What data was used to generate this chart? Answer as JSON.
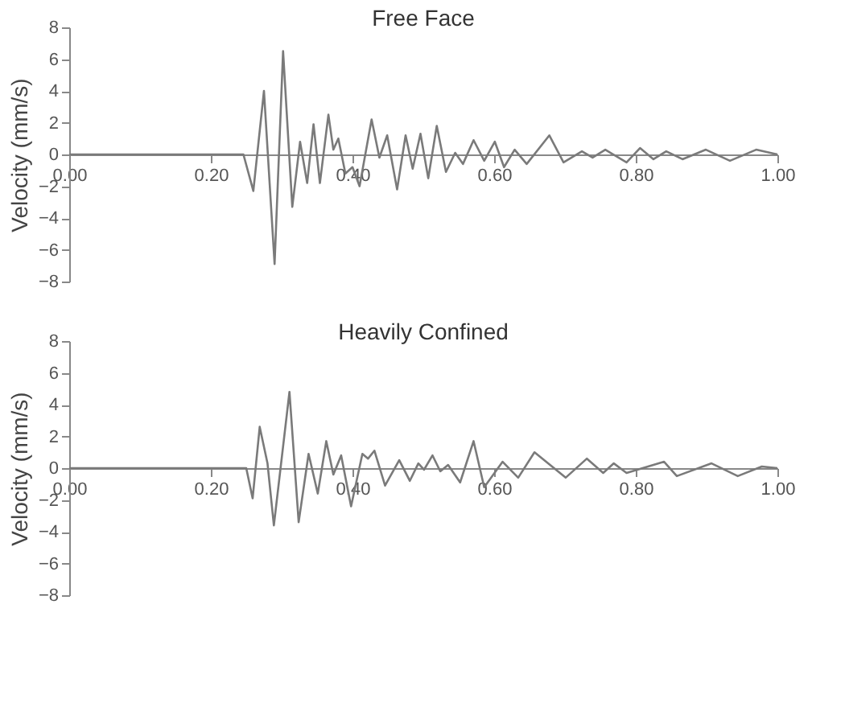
{
  "chart_data": [
    {
      "type": "line",
      "title": "Free Face",
      "ylabel": "Velocity (mm/s)",
      "color": "#7a7a7a",
      "xlim": [
        0,
        1
      ],
      "ylim": [
        -8,
        8
      ],
      "yticks": [
        -8,
        -6,
        -4,
        -2,
        0,
        2,
        4,
        6,
        8
      ],
      "xticks": [
        {
          "value": 0,
          "label": "0.00"
        },
        {
          "value": 0.2,
          "label": "0.20"
        },
        {
          "value": 0.4,
          "label": "0.40"
        },
        {
          "value": 0.6,
          "label": "0.60"
        },
        {
          "value": 0.8,
          "label": "0.80"
        },
        {
          "value": 1,
          "label": "1.00"
        }
      ],
      "grid": false,
      "x": [
        0,
        0.1,
        0.2,
        0.246,
        0.26,
        0.275,
        0.29,
        0.302,
        0.315,
        0.326,
        0.336,
        0.345,
        0.354,
        0.366,
        0.373,
        0.38,
        0.39,
        0.4,
        0.41,
        0.427,
        0.438,
        0.449,
        0.463,
        0.475,
        0.485,
        0.496,
        0.507,
        0.519,
        0.532,
        0.545,
        0.556,
        0.571,
        0.586,
        0.601,
        0.614,
        0.629,
        0.646,
        0.678,
        0.698,
        0.724,
        0.739,
        0.757,
        0.787,
        0.806,
        0.825,
        0.843,
        0.866,
        0.899,
        0.933,
        0.97,
        1.0
      ],
      "values": [
        0,
        0,
        0,
        0,
        -2.3,
        4.0,
        -6.9,
        6.5,
        -3.3,
        0.8,
        -1.8,
        1.9,
        -1.8,
        2.5,
        0.3,
        1.0,
        -1.2,
        -0.8,
        -2.0,
        2.2,
        -0.2,
        1.2,
        -2.2,
        1.2,
        -0.9,
        1.3,
        -1.5,
        1.8,
        -1.1,
        0.1,
        -0.6,
        0.9,
        -0.4,
        0.8,
        -0.8,
        0.3,
        -0.6,
        1.2,
        -0.5,
        0.2,
        -0.2,
        0.3,
        -0.5,
        0.4,
        -0.3,
        0.2,
        -0.3,
        0.3,
        -0.4,
        0.3,
        0
      ]
    },
    {
      "type": "line",
      "title": "Heavily Confined",
      "ylabel": "Velocity (mm/s)",
      "color": "#7a7a7a",
      "xlim": [
        0,
        1
      ],
      "ylim": [
        -8,
        8
      ],
      "yticks": [
        -8,
        -6,
        -4,
        -2,
        0,
        2,
        4,
        6,
        8
      ],
      "xticks": [
        {
          "value": 0,
          "label": "0.00"
        },
        {
          "value": 0.2,
          "label": "0.20"
        },
        {
          "value": 0.4,
          "label": "0.40"
        },
        {
          "value": 0.6,
          "label": "0.60"
        },
        {
          "value": 0.8,
          "label": "0.80"
        },
        {
          "value": 1,
          "label": "1.00"
        }
      ],
      "grid": false,
      "x": [
        0,
        0.1,
        0.2,
        0.25,
        0.259,
        0.269,
        0.28,
        0.289,
        0.311,
        0.324,
        0.338,
        0.351,
        0.363,
        0.373,
        0.384,
        0.398,
        0.414,
        0.422,
        0.431,
        0.446,
        0.466,
        0.481,
        0.493,
        0.501,
        0.513,
        0.524,
        0.535,
        0.552,
        0.571,
        0.586,
        0.612,
        0.634,
        0.657,
        0.701,
        0.731,
        0.754,
        0.769,
        0.787,
        0.84,
        0.858,
        0.907,
        0.944,
        0.978,
        1.0
      ],
      "values": [
        0,
        0,
        0,
        0,
        -1.9,
        2.6,
        0.3,
        -3.6,
        4.8,
        -3.4,
        0.9,
        -1.6,
        1.7,
        -0.4,
        0.8,
        -2.4,
        0.9,
        0.6,
        1.1,
        -1.1,
        0.5,
        -0.8,
        0.3,
        -0.1,
        0.8,
        -0.2,
        0.2,
        -0.9,
        1.7,
        -1.2,
        0.4,
        -0.6,
        1.0,
        -0.6,
        0.6,
        -0.3,
        0.3,
        -0.3,
        0.4,
        -0.5,
        0.3,
        -0.5,
        0.1,
        0
      ]
    }
  ]
}
